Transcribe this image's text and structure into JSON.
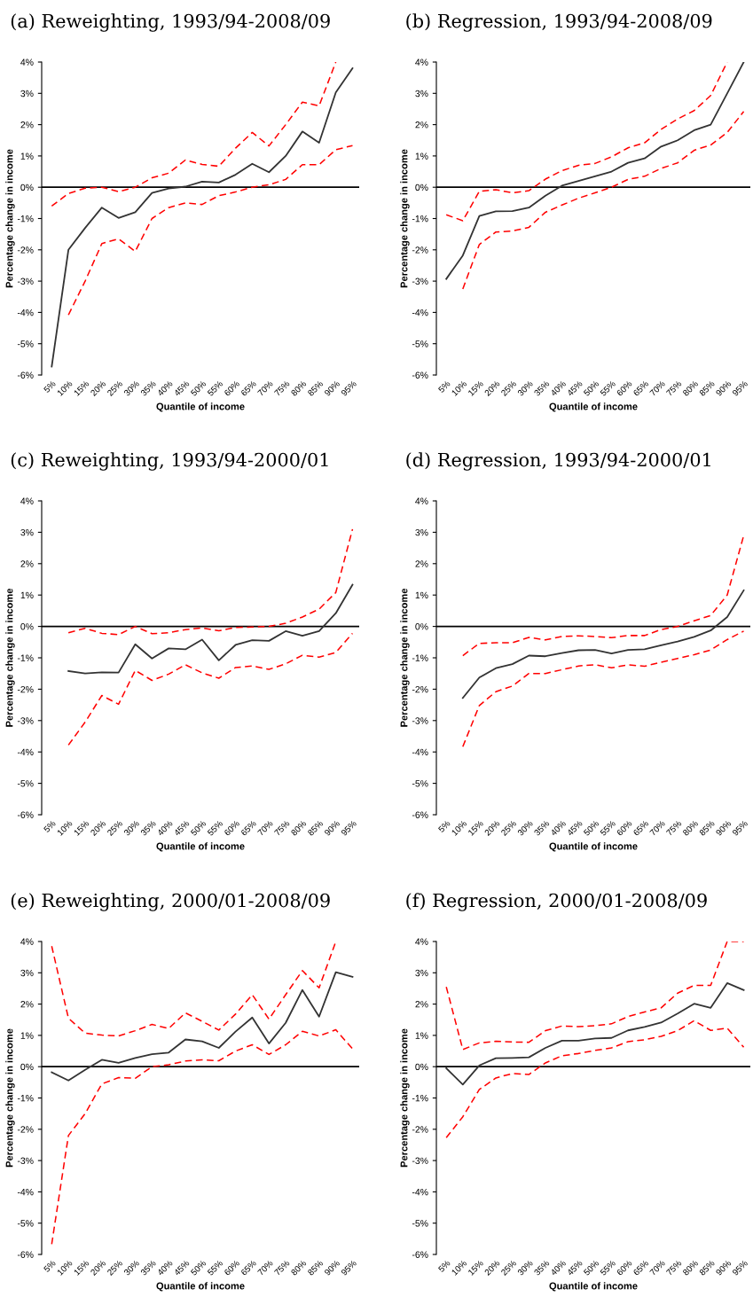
{
  "chart_data": [
    {
      "type": "line",
      "title": "(a) Reweighting, 1993/94-2008/09",
      "xlabel": "Quantile of income",
      "ylabel": "Percentage change in income",
      "categories": [
        "5%",
        "10%",
        "15%",
        "20%",
        "25%",
        "30%",
        "35%",
        "40%",
        "45%",
        "50%",
        "55%",
        "60%",
        "65%",
        "70%",
        "75%",
        "80%",
        "85%",
        "90%",
        "95%"
      ],
      "ylim": [
        -6,
        4
      ],
      "yticks": [
        {
          "value": -6,
          "label": "-6%"
        },
        {
          "value": -5,
          "label": "-5%"
        },
        {
          "value": -4,
          "label": "-4%"
        },
        {
          "value": -3,
          "label": "-3%"
        },
        {
          "value": -2,
          "label": "-2%"
        },
        {
          "value": -1,
          "label": "-1%"
        },
        {
          "value": 0,
          "label": "0%"
        },
        {
          "value": 1,
          "label": "1%"
        },
        {
          "value": 2,
          "label": "2%"
        },
        {
          "value": 3,
          "label": "3%"
        },
        {
          "value": 4,
          "label": "4%"
        }
      ],
      "grid": false,
      "legend": false,
      "ref_lines": [
        {
          "axis": "y",
          "value": 0,
          "color": "#000000"
        }
      ],
      "series": [
        {
          "color": "#333333",
          "line_style": "solid",
          "values": [
            -5.73,
            -2.0,
            -1.3,
            -0.65,
            -0.98,
            -0.8,
            -0.18,
            -0.04,
            0.02,
            0.18,
            0.15,
            0.4,
            0.75,
            0.48,
            1.0,
            1.78,
            1.42,
            3.03,
            3.8
          ]
        },
        {
          "color": "#ff0000",
          "line_style": "dashed",
          "values": [
            -0.6,
            -0.2,
            -0.03,
            0.0,
            -0.14,
            0.0,
            0.3,
            0.45,
            0.87,
            0.73,
            0.67,
            1.25,
            1.75,
            1.32,
            2.0,
            2.72,
            2.6,
            4.0,
            null
          ]
        },
        {
          "color": "#ff0000",
          "line_style": "dashed",
          "values": [
            null,
            -4.08,
            -3.0,
            -1.8,
            -1.65,
            -2.05,
            -1.0,
            -0.65,
            -0.5,
            -0.55,
            -0.27,
            -0.15,
            0.0,
            0.08,
            0.25,
            0.72,
            0.72,
            1.2,
            1.33
          ]
        }
      ]
    },
    {
      "type": "line",
      "title": "(b) Regression, 1993/94-2008/09",
      "xlabel": "Quantile of income",
      "ylabel": "Percentage change in income",
      "categories": [
        "5%",
        "10%",
        "15%",
        "20%",
        "25%",
        "30%",
        "35%",
        "40%",
        "45%",
        "50%",
        "55%",
        "60%",
        "65%",
        "70%",
        "75%",
        "80%",
        "85%",
        "90%",
        "95%"
      ],
      "ylim": [
        -6,
        4
      ],
      "yticks": [
        {
          "value": -6,
          "label": "-6%"
        },
        {
          "value": -5,
          "label": "-5%"
        },
        {
          "value": -4,
          "label": "-4%"
        },
        {
          "value": -3,
          "label": "-3%"
        },
        {
          "value": -2,
          "label": "-2%"
        },
        {
          "value": -1,
          "label": "-1%"
        },
        {
          "value": 0,
          "label": "0%"
        },
        {
          "value": 1,
          "label": "1%"
        },
        {
          "value": 2,
          "label": "2%"
        },
        {
          "value": 3,
          "label": "3%"
        },
        {
          "value": 4,
          "label": "4%"
        }
      ],
      "grid": false,
      "legend": false,
      "ref_lines": [
        {
          "axis": "y",
          "value": 0,
          "color": "#000000"
        }
      ],
      "series": [
        {
          "color": "#333333",
          "line_style": "solid",
          "values": [
            -2.93,
            -2.18,
            -0.92,
            -0.77,
            -0.76,
            -0.65,
            -0.27,
            0.05,
            0.2,
            0.35,
            0.5,
            0.78,
            0.92,
            1.3,
            1.5,
            1.82,
            2.0,
            3.0,
            4.0
          ]
        },
        {
          "color": "#ff0000",
          "line_style": "dashed",
          "values": [
            -0.88,
            -1.07,
            -0.13,
            -0.08,
            -0.18,
            -0.11,
            0.26,
            0.53,
            0.7,
            0.76,
            0.97,
            1.26,
            1.42,
            1.85,
            2.18,
            2.45,
            2.93,
            4.0,
            null
          ]
        },
        {
          "color": "#ff0000",
          "line_style": "dashed",
          "values": [
            null,
            -3.25,
            -1.83,
            -1.43,
            -1.4,
            -1.28,
            -0.8,
            -0.57,
            -0.35,
            -0.18,
            0.0,
            0.25,
            0.35,
            0.6,
            0.78,
            1.18,
            1.35,
            1.75,
            2.42
          ]
        }
      ]
    },
    {
      "type": "line",
      "title": "(c) Reweighting, 1993/94-2000/01",
      "xlabel": "Quantile of income",
      "ylabel": "Percentage change in income",
      "categories": [
        "5%",
        "10%",
        "15%",
        "20%",
        "25%",
        "30%",
        "35%",
        "40%",
        "45%",
        "50%",
        "55%",
        "60%",
        "65%",
        "70%",
        "75%",
        "80%",
        "85%",
        "90%",
        "95%"
      ],
      "ylim": [
        -6,
        4
      ],
      "yticks": [
        {
          "value": -6,
          "label": "-6%"
        },
        {
          "value": -5,
          "label": "-5%"
        },
        {
          "value": -4,
          "label": "-4%"
        },
        {
          "value": -3,
          "label": "-3%"
        },
        {
          "value": -2,
          "label": "-2%"
        },
        {
          "value": -1,
          "label": "-1%"
        },
        {
          "value": 0,
          "label": "0%"
        },
        {
          "value": 1,
          "label": "1%"
        },
        {
          "value": 2,
          "label": "2%"
        },
        {
          "value": 3,
          "label": "3%"
        },
        {
          "value": 4,
          "label": "4%"
        }
      ],
      "grid": false,
      "legend": false,
      "ref_lines": [
        {
          "axis": "y",
          "value": 0,
          "color": "#000000"
        }
      ],
      "series": [
        {
          "color": "#333333",
          "line_style": "solid",
          "values": [
            null,
            -1.42,
            -1.5,
            -1.46,
            -1.47,
            -0.57,
            -1.02,
            -0.7,
            -0.73,
            -0.42,
            -1.08,
            -0.59,
            -0.44,
            -0.46,
            -0.15,
            -0.3,
            -0.15,
            0.42,
            1.33
          ]
        },
        {
          "color": "#ff0000",
          "line_style": "dashed",
          "values": [
            null,
            -0.2,
            -0.06,
            -0.22,
            -0.26,
            0.0,
            -0.23,
            -0.2,
            -0.1,
            -0.05,
            -0.14,
            -0.03,
            -0.02,
            0.0,
            0.1,
            0.3,
            0.55,
            1.08,
            3.1
          ]
        },
        {
          "color": "#ff0000",
          "line_style": "dashed",
          "values": [
            null,
            -3.78,
            -3.05,
            -2.2,
            -2.48,
            -1.4,
            -1.72,
            -1.52,
            -1.22,
            -1.48,
            -1.65,
            -1.31,
            -1.26,
            -1.37,
            -1.19,
            -0.92,
            -0.98,
            -0.83,
            -0.22
          ]
        }
      ]
    },
    {
      "type": "line",
      "title": "(d) Regression, 1993/94-2000/01",
      "xlabel": "Quantile of income",
      "ylabel": "Percentage change in income",
      "categories": [
        "5%",
        "10%",
        "15%",
        "20%",
        "25%",
        "30%",
        "35%",
        "40%",
        "45%",
        "50%",
        "55%",
        "60%",
        "65%",
        "70%",
        "75%",
        "80%",
        "85%",
        "90%",
        "95%"
      ],
      "ylim": [
        -6,
        4
      ],
      "yticks": [
        {
          "value": -6,
          "label": "-6%"
        },
        {
          "value": -5,
          "label": "-5%"
        },
        {
          "value": -4,
          "label": "-4%"
        },
        {
          "value": -3,
          "label": "-3%"
        },
        {
          "value": -2,
          "label": "-2%"
        },
        {
          "value": -1,
          "label": "-1%"
        },
        {
          "value": 0,
          "label": "0%"
        },
        {
          "value": 1,
          "label": "1%"
        },
        {
          "value": 2,
          "label": "2%"
        },
        {
          "value": 3,
          "label": "3%"
        },
        {
          "value": 4,
          "label": "4%"
        }
      ],
      "grid": false,
      "legend": false,
      "ref_lines": [
        {
          "axis": "y",
          "value": 0,
          "color": "#000000"
        }
      ],
      "series": [
        {
          "color": "#333333",
          "line_style": "solid",
          "values": [
            null,
            -2.28,
            -1.63,
            -1.33,
            -1.2,
            -0.93,
            -0.95,
            -0.85,
            -0.76,
            -0.75,
            -0.86,
            -0.75,
            -0.73,
            -0.6,
            -0.48,
            -0.33,
            -0.13,
            0.3,
            1.15
          ]
        },
        {
          "color": "#ff0000",
          "line_style": "dashed",
          "values": [
            null,
            -0.93,
            -0.54,
            -0.52,
            -0.52,
            -0.35,
            -0.43,
            -0.32,
            -0.3,
            -0.32,
            -0.36,
            -0.29,
            -0.29,
            -0.1,
            0.0,
            0.18,
            0.35,
            1.0,
            2.9
          ]
        },
        {
          "color": "#ff0000",
          "line_style": "dashed",
          "values": [
            null,
            -3.83,
            -2.52,
            -2.08,
            -1.9,
            -1.5,
            -1.5,
            -1.38,
            -1.26,
            -1.22,
            -1.32,
            -1.22,
            -1.27,
            -1.14,
            -1.02,
            -0.9,
            -0.75,
            -0.42,
            -0.15
          ]
        }
      ]
    },
    {
      "type": "line",
      "title": "(e) Reweighting, 2000/01-2008/09",
      "xlabel": "Quantile of income",
      "ylabel": "Percentage change in income",
      "categories": [
        "5%",
        "10%",
        "15%",
        "20%",
        "25%",
        "30%",
        "35%",
        "40%",
        "45%",
        "50%",
        "55%",
        "60%",
        "65%",
        "70%",
        "75%",
        "80%",
        "85%",
        "90%",
        "95%"
      ],
      "ylim": [
        -6,
        4
      ],
      "yticks": [
        {
          "value": -6,
          "label": "-6%"
        },
        {
          "value": -5,
          "label": "-5%"
        },
        {
          "value": -4,
          "label": "-4%"
        },
        {
          "value": -3,
          "label": "-3%"
        },
        {
          "value": -2,
          "label": "-2%"
        },
        {
          "value": -1,
          "label": "-1%"
        },
        {
          "value": 0,
          "label": "0%"
        },
        {
          "value": 1,
          "label": "1%"
        },
        {
          "value": 2,
          "label": "2%"
        },
        {
          "value": 3,
          "label": "3%"
        },
        {
          "value": 4,
          "label": "4%"
        }
      ],
      "grid": false,
      "legend": false,
      "ref_lines": [
        {
          "axis": "y",
          "value": 0,
          "color": "#000000"
        }
      ],
      "series": [
        {
          "color": "#333333",
          "line_style": "solid",
          "values": [
            -0.18,
            -0.44,
            -0.1,
            0.22,
            0.12,
            0.28,
            0.4,
            0.45,
            0.87,
            0.81,
            0.6,
            1.12,
            1.57,
            0.74,
            1.4,
            2.45,
            1.6,
            3.02,
            2.87
          ]
        },
        {
          "color": "#ff0000",
          "line_style": "dashed",
          "values": [
            3.85,
            1.55,
            1.07,
            1.01,
            0.98,
            1.15,
            1.35,
            1.22,
            1.72,
            1.45,
            1.17,
            1.68,
            2.3,
            1.52,
            2.3,
            3.07,
            2.52,
            4.0,
            null
          ]
        },
        {
          "color": "#ff0000",
          "line_style": "dashed",
          "values": [
            -5.67,
            -2.2,
            -1.5,
            -0.55,
            -0.35,
            -0.37,
            0.0,
            0.06,
            0.18,
            0.22,
            0.19,
            0.5,
            0.7,
            0.39,
            0.7,
            1.13,
            0.98,
            1.18,
            0.57
          ]
        }
      ]
    },
    {
      "type": "line",
      "title": "(f) Regression, 2000/01-2008/09",
      "xlabel": "Quantile of income",
      "ylabel": "Percentage change in income",
      "categories": [
        "5%",
        "10%",
        "15%",
        "20%",
        "25%",
        "30%",
        "35%",
        "40%",
        "45%",
        "50%",
        "55%",
        "60%",
        "65%",
        "70%",
        "75%",
        "80%",
        "85%",
        "90%",
        "95%"
      ],
      "ylim": [
        -6,
        4
      ],
      "yticks": [
        {
          "value": -6,
          "label": "-6%"
        },
        {
          "value": -5,
          "label": "-5%"
        },
        {
          "value": -4,
          "label": "-4%"
        },
        {
          "value": -3,
          "label": "-3%"
        },
        {
          "value": -2,
          "label": "-2%"
        },
        {
          "value": -1,
          "label": "-1%"
        },
        {
          "value": 0,
          "label": "0%"
        },
        {
          "value": 1,
          "label": "1%"
        },
        {
          "value": 2,
          "label": "2%"
        },
        {
          "value": 3,
          "label": "3%"
        },
        {
          "value": 4,
          "label": "4%"
        }
      ],
      "grid": false,
      "legend": false,
      "ref_lines": [
        {
          "axis": "y",
          "value": 0,
          "color": "#000000"
        }
      ],
      "series": [
        {
          "color": "#333333",
          "line_style": "solid",
          "values": [
            -0.05,
            -0.57,
            0.04,
            0.27,
            0.28,
            0.3,
            0.6,
            0.83,
            0.83,
            0.9,
            0.92,
            1.16,
            1.27,
            1.41,
            1.7,
            2.01,
            1.88,
            2.67,
            2.45
          ]
        },
        {
          "color": "#ff0000",
          "line_style": "dashed",
          "values": [
            2.55,
            0.55,
            0.76,
            0.81,
            0.79,
            0.78,
            1.15,
            1.3,
            1.28,
            1.31,
            1.37,
            1.6,
            1.75,
            1.88,
            2.35,
            2.6,
            2.6,
            4.0,
            4.0
          ]
        },
        {
          "color": "#ff0000",
          "line_style": "dashed",
          "values": [
            -2.27,
            -1.6,
            -0.73,
            -0.36,
            -0.22,
            -0.25,
            0.12,
            0.35,
            0.42,
            0.52,
            0.6,
            0.8,
            0.86,
            0.97,
            1.15,
            1.47,
            1.16,
            1.23,
            0.62
          ]
        }
      ]
    }
  ]
}
